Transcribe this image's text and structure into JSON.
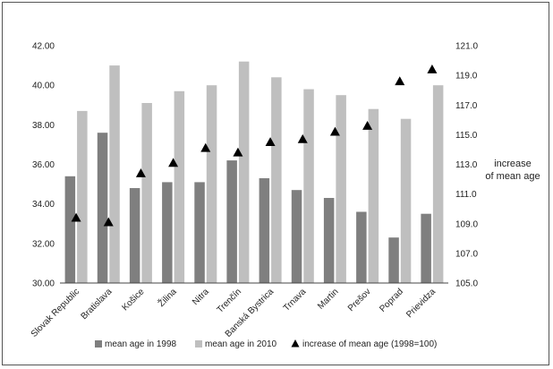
{
  "chart_data": {
    "type": "bar",
    "categories": [
      "Slovak Republic",
      "Bratislava",
      "Košice",
      "Žilina",
      "Nitra",
      "Trenčín",
      "Banská Bystrica",
      "Trnava",
      "Martin",
      "Prešov",
      "Poprad",
      "Prievidza"
    ],
    "series": [
      {
        "name": "mean age in 1998",
        "type": "bar",
        "axis": "left",
        "color": "#7f7f7f",
        "values": [
          35.4,
          37.6,
          34.8,
          35.1,
          35.1,
          36.2,
          35.3,
          34.7,
          34.3,
          33.6,
          32.3,
          33.5
        ]
      },
      {
        "name": "mean age in 2010",
        "type": "bar",
        "axis": "left",
        "color": "#bfbfbf",
        "values": [
          38.7,
          41.0,
          39.1,
          39.7,
          40.0,
          41.2,
          40.4,
          39.8,
          39.5,
          38.8,
          38.3,
          40.0
        ]
      },
      {
        "name": "increase of mean age (1998=100)",
        "type": "scatter",
        "marker": "triangle",
        "axis": "right",
        "color": "#000000",
        "values": [
          109.4,
          109.1,
          112.4,
          113.1,
          114.1,
          113.8,
          114.5,
          114.7,
          115.2,
          115.6,
          118.6,
          119.4
        ]
      }
    ],
    "y_left": {
      "ylim": [
        30.0,
        42.0
      ],
      "ticks": [
        "30.00",
        "32.00",
        "34.00",
        "36.00",
        "38.00",
        "40.00",
        "42.00"
      ]
    },
    "y_right": {
      "ylim": [
        105.0,
        121.0
      ],
      "ticks": [
        "105.0",
        "107.0",
        "109.0",
        "111.0",
        "113.0",
        "115.0",
        "117.0",
        "119.0",
        "121.0"
      ],
      "label_line1": "increase",
      "label_line2": "of mean age"
    },
    "grid": false,
    "legend_position": "bottom"
  }
}
